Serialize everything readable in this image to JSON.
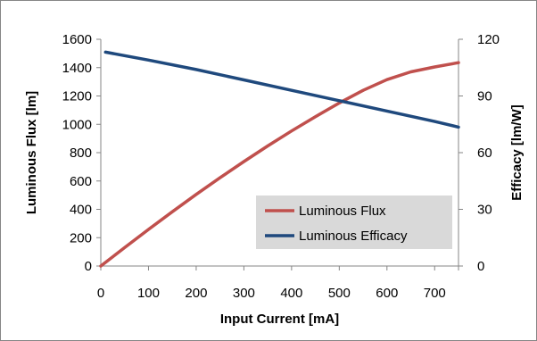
{
  "chart_data": {
    "type": "line",
    "title": "",
    "xlabel": "Input Current [mA]",
    "ylabel_left": "Luminous Flux [lm]",
    "ylabel_right": "Efficacy [lm/W]",
    "xlim": [
      0,
      750
    ],
    "ylim_left": [
      0,
      1600
    ],
    "ylim_right": [
      0,
      120
    ],
    "x_ticks": [
      "0",
      "100",
      "200",
      "300",
      "400",
      "500",
      "600",
      "700"
    ],
    "y_left_ticks": [
      "0",
      "200",
      "400",
      "600",
      "800",
      "1000",
      "1200",
      "1400",
      "1600"
    ],
    "y_right_ticks": [
      "0",
      "30",
      "60",
      "90",
      "120"
    ],
    "grid": false,
    "legend_position": "lower-right",
    "series": [
      {
        "name": "Luminous Flux",
        "axis": "left",
        "color": "#c0504d",
        "x": [
          0,
          50,
          100,
          150,
          200,
          250,
          300,
          350,
          400,
          450,
          500,
          550,
          600,
          650,
          700,
          750
        ],
        "y": [
          0,
          130,
          258,
          383,
          505,
          623,
          737,
          847,
          953,
          1054,
          1150,
          1240,
          1315,
          1370,
          1405,
          1435
        ]
      },
      {
        "name": "Luminous Efficacy",
        "axis": "right",
        "color": "#1f497d",
        "x": [
          10,
          100,
          200,
          300,
          400,
          500,
          600,
          700,
          750
        ],
        "y": [
          113.2,
          109,
          104,
          98.5,
          93,
          87.5,
          82,
          76.5,
          73.5
        ]
      }
    ]
  }
}
